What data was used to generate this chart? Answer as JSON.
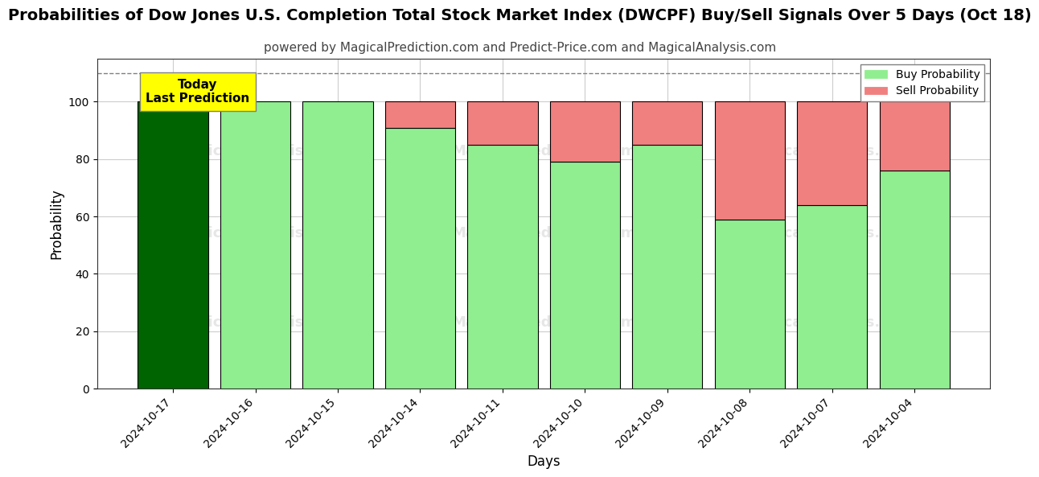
{
  "title": "Probabilities of Dow Jones U.S. Completion Total Stock Market Index (DWCPF) Buy/Sell Signals Over 5 Days (Oct 18)",
  "subtitle": "powered by MagicalPrediction.com and Predict-Price.com and MagicalAnalysis.com",
  "xlabel": "Days",
  "ylabel": "Probability",
  "categories": [
    "2024-10-17",
    "2024-10-16",
    "2024-10-15",
    "2024-10-14",
    "2024-10-11",
    "2024-10-10",
    "2024-10-09",
    "2024-10-08",
    "2024-10-07",
    "2024-10-04"
  ],
  "buy_values": [
    100,
    100,
    100,
    91,
    85,
    79,
    85,
    59,
    64,
    76
  ],
  "sell_values": [
    0,
    0,
    0,
    9,
    15,
    21,
    15,
    41,
    36,
    24
  ],
  "today_bar_color": "#006400",
  "buy_color": "#90EE90",
  "sell_color": "#F08080",
  "today_label_bg": "#FFFF00",
  "today_label_text": "Today\nLast Prediction",
  "ylim": [
    0,
    115
  ],
  "yticks": [
    0,
    20,
    40,
    60,
    80,
    100
  ],
  "dashed_line_y": 110,
  "bar_edge_color": "#000000",
  "grid_color": "#cccccc",
  "background_color": "#ffffff",
  "title_fontsize": 14,
  "subtitle_fontsize": 11,
  "bar_width": 0.85
}
